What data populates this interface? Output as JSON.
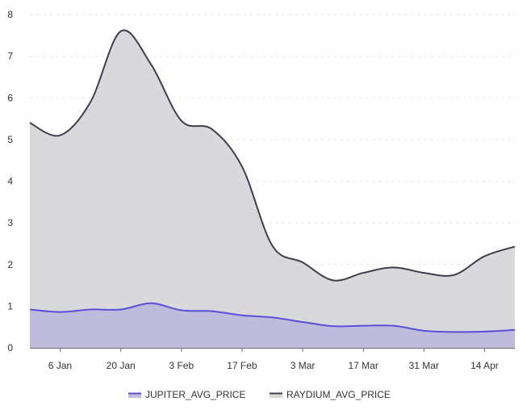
{
  "chart_data": {
    "type": "area",
    "x": [
      "2024-12-30",
      "2025-01-06",
      "2025-01-13",
      "2025-01-20",
      "2025-01-27",
      "2025-02-03",
      "2025-02-10",
      "2025-02-17",
      "2025-02-24",
      "2025-03-03",
      "2025-03-10",
      "2025-03-17",
      "2025-03-24",
      "2025-03-31",
      "2025-04-07",
      "2025-04-14",
      "2025-04-21"
    ],
    "x_tick_labels": [
      {
        "date": "2025-01-06",
        "label": "6 Jan"
      },
      {
        "date": "2025-01-20",
        "label": "20 Jan"
      },
      {
        "date": "2025-02-03",
        "label": "3 Feb"
      },
      {
        "date": "2025-02-17",
        "label": "17 Feb"
      },
      {
        "date": "2025-03-03",
        "label": "3 Mar"
      },
      {
        "date": "2025-03-17",
        "label": "17 Mar"
      },
      {
        "date": "2025-03-31",
        "label": "31 Mar"
      },
      {
        "date": "2025-04-14",
        "label": "14 Apr"
      }
    ],
    "series": [
      {
        "name": "RAYDIUM_AVG_PRICE",
        "color": "#3f3d4b",
        "fill": "#d9d9dc",
        "values": [
          5.4,
          5.1,
          5.9,
          7.6,
          6.8,
          5.45,
          5.25,
          4.35,
          2.45,
          2.05,
          1.62,
          1.8,
          1.93,
          1.8,
          1.75,
          2.2,
          2.43
        ]
      },
      {
        "name": "JUPITER_AVG_PRICE",
        "color": "#5a4fd6",
        "fill": "#bfbbdd",
        "values": [
          0.92,
          0.86,
          0.92,
          0.92,
          1.07,
          0.9,
          0.88,
          0.78,
          0.73,
          0.62,
          0.52,
          0.53,
          0.53,
          0.41,
          0.38,
          0.39,
          0.43
        ]
      }
    ],
    "y_ticks": [
      0,
      1,
      2,
      3,
      4,
      5,
      6,
      7,
      8
    ],
    "ylim": [
      0,
      8
    ],
    "xlim": [
      "2024-12-30",
      "2025-04-21"
    ],
    "grid": "horizontal dashed",
    "legend": "bottom-center",
    "title": "",
    "xlabel": "",
    "ylabel": ""
  }
}
